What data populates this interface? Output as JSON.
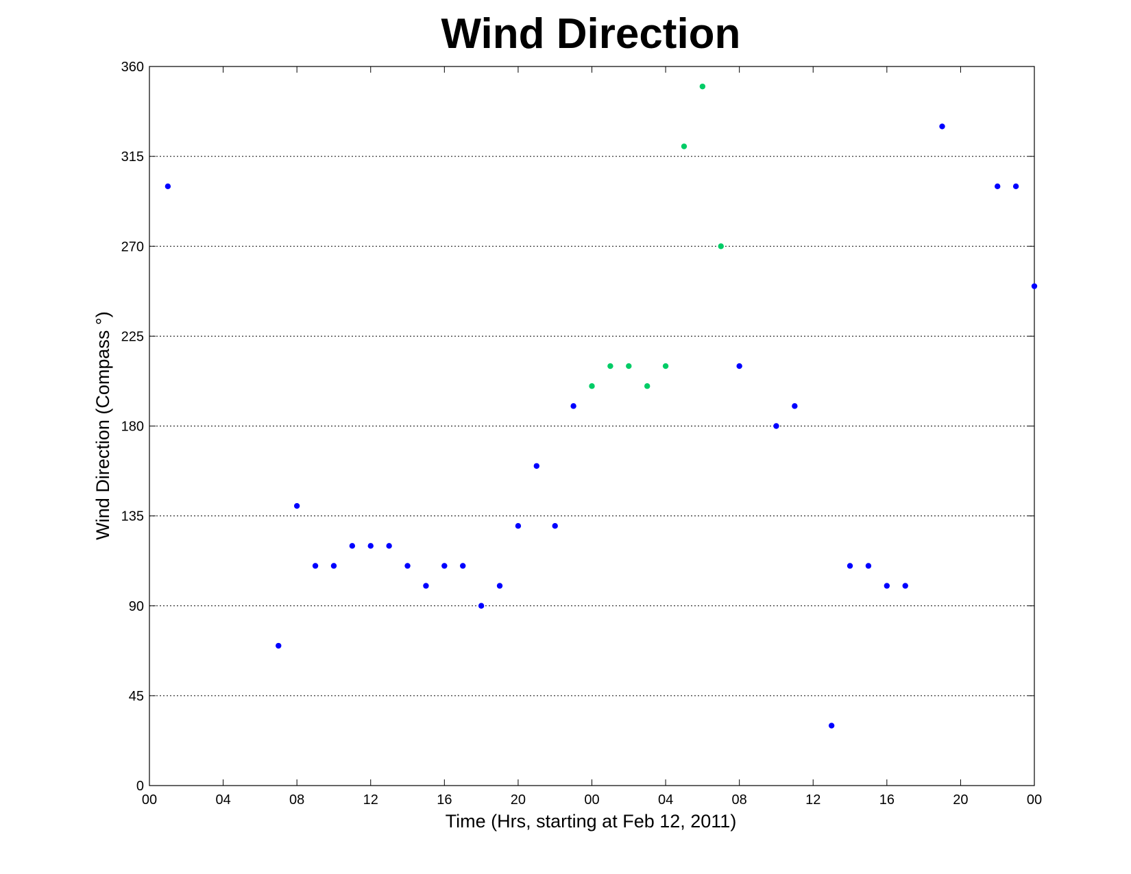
{
  "chart_data": {
    "type": "scatter",
    "title": "Wind Direction",
    "xlabel": "Time (Hrs, starting at Feb 12, 2011)",
    "ylabel": "Wind Direction (Compass °)",
    "xlim": [
      0,
      48
    ],
    "ylim": [
      0,
      360
    ],
    "x_ticks": [
      0,
      4,
      8,
      12,
      16,
      20,
      24,
      28,
      32,
      36,
      40,
      44,
      48
    ],
    "x_tick_labels": [
      "00",
      "04",
      "08",
      "12",
      "16",
      "20",
      "00",
      "04",
      "08",
      "12",
      "16",
      "20",
      "00"
    ],
    "y_ticks": [
      0,
      45,
      90,
      135,
      180,
      225,
      270,
      315,
      360
    ],
    "y_tick_labels": [
      "0",
      "45",
      "90",
      "135",
      "180",
      "225",
      "270",
      "315",
      "360"
    ],
    "grid": "horizontal dotted",
    "series": [
      {
        "color": "#0000ff",
        "x": [
          1,
          7,
          8,
          9,
          10,
          11,
          12,
          13,
          14,
          15,
          16,
          17,
          18,
          19,
          20,
          21,
          22,
          23,
          32,
          34,
          35,
          37,
          38,
          39,
          40,
          41,
          43,
          46,
          47,
          48
        ],
        "y": [
          300,
          70,
          140,
          110,
          110,
          120,
          120,
          120,
          110,
          100,
          110,
          110,
          90,
          100,
          130,
          160,
          130,
          190,
          210,
          180,
          190,
          30,
          110,
          110,
          100,
          100,
          330,
          300,
          300,
          250
        ]
      },
      {
        "color": "#00cc66",
        "x": [
          24,
          25,
          26,
          27,
          28,
          29,
          30,
          31
        ],
        "y": [
          200,
          210,
          210,
          200,
          210,
          320,
          350,
          270
        ]
      }
    ]
  }
}
